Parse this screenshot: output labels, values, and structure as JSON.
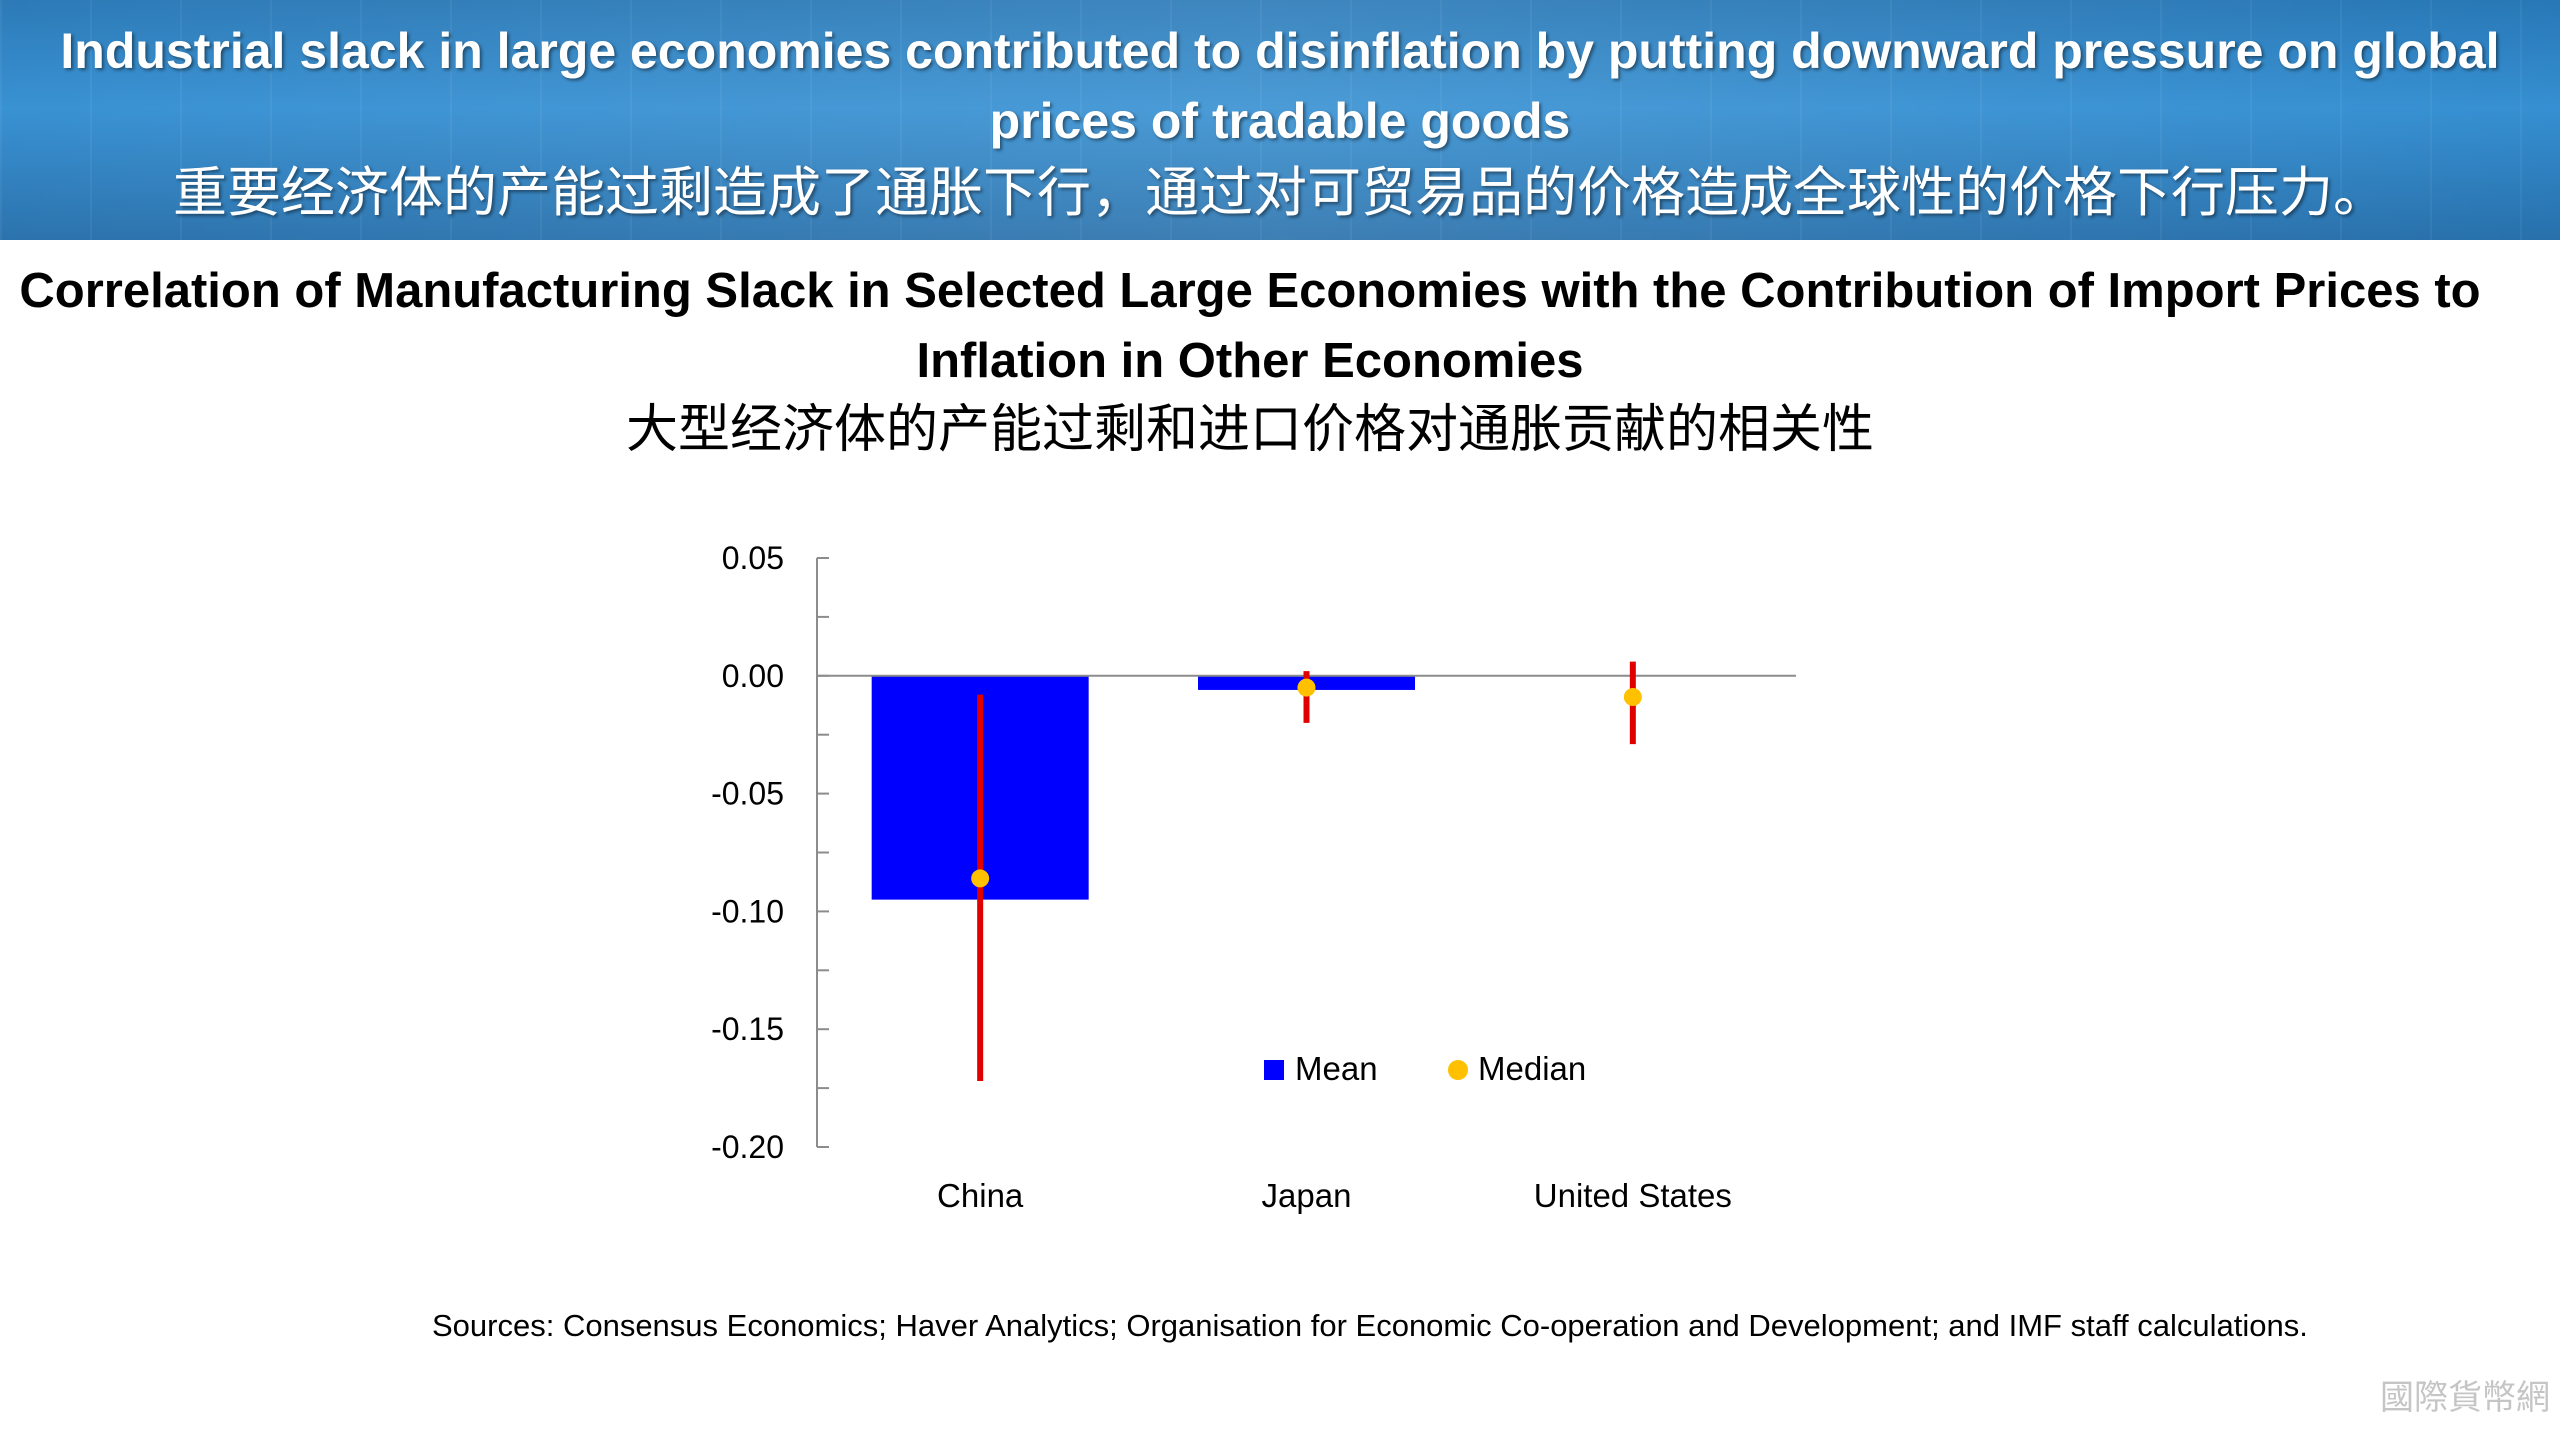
{
  "banner": {
    "title_en": "Industrial slack in large economies contributed to disinflation by putting downward pressure on global prices of tradable goods",
    "title_zh": "重要经济体的产能过剩造成了通胀下行，通过对可贸易品的价格造成全球性的价格下行压力。"
  },
  "chart_data": {
    "type": "bar",
    "title": "Correlation of Manufacturing Slack in Selected Large Economies with the Contribution of Import Prices to Inflation in Other Economies",
    "subtitle": "大型经济体的产能过剩和进口价格对通胀贡献的相关性",
    "categories": [
      "China",
      "Japan",
      "United States"
    ],
    "series": [
      {
        "name": "Mean",
        "kind": "bar",
        "color": "#0000ff",
        "values": [
          -0.095,
          -0.006,
          0.0
        ]
      },
      {
        "name": "Median",
        "kind": "point",
        "color": "#ffc000",
        "values": [
          -0.086,
          -0.005,
          -0.009
        ]
      }
    ],
    "error_range": {
      "color": "#e00000",
      "low": [
        -0.172,
        -0.02,
        -0.029
      ],
      "high": [
        -0.008,
        0.002,
        0.006
      ]
    },
    "yticks": [
      "0.05",
      "0.00",
      "-0.05",
      "-0.10",
      "-0.15",
      "-0.20"
    ],
    "ylim": [
      -0.2,
      0.05
    ],
    "xlabel": "",
    "ylabel": "",
    "grid": false,
    "legend_position": "inside-bottom-center"
  },
  "sources": "Sources: Consensus Economics; Haver Analytics; Organisation for Economic Co-operation and Development; and IMF staff calculations.",
  "watermark": "國際貨幣網"
}
